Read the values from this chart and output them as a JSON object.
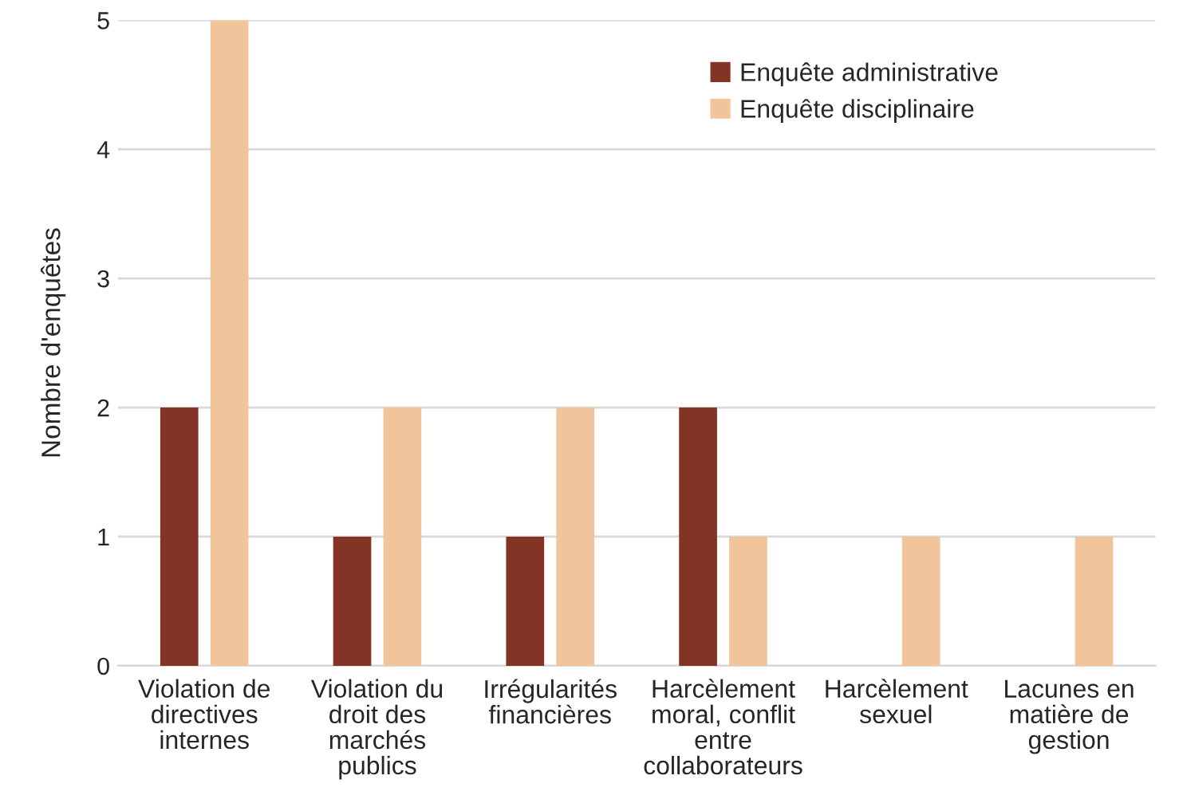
{
  "chart_data": {
    "type": "bar",
    "ylabel": "Nombre d'enquêtes",
    "categories": [
      "Violation de\ndirectives\ninternes",
      "Violation du\ndroit des\nmarchés\npublics",
      "Irrégularités\nfinancières",
      "Harcèlement\nmoral, conflit\nentre\ncollaborateurs",
      "Harcèlement\nsexuel",
      "Lacunes en\nmatière de\ngestion"
    ],
    "series": [
      {
        "name": "Enquête administrative",
        "color": "#843424",
        "values": [
          2,
          1,
          1,
          2,
          null,
          null
        ]
      },
      {
        "name": "Enquête disciplinaire",
        "color": "#f2c49c",
        "values": [
          5,
          2,
          2,
          1,
          1,
          1
        ]
      }
    ],
    "ylim": [
      0,
      5
    ],
    "yticks": [
      0,
      1,
      2,
      3,
      4,
      5
    ],
    "grid": "y",
    "legend": "top right"
  }
}
